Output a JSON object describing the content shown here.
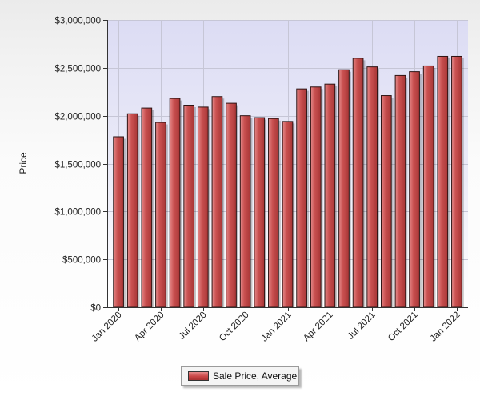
{
  "chart_data": {
    "type": "bar",
    "ylabel": "Price",
    "ylim": [
      0,
      3000000
    ],
    "y_ticks": [
      0,
      500000,
      1000000,
      1500000,
      2000000,
      2500000,
      3000000
    ],
    "y_tick_labels": [
      "$0",
      "$500,000",
      "$1,000,000",
      "$1,500,000",
      "$2,000,000",
      "$2,500,000",
      "$3,000,000"
    ],
    "categories": [
      "Jan 2020",
      "Feb 2020",
      "Mar 2020",
      "Apr 2020",
      "May 2020",
      "Jun 2020",
      "Jul 2020",
      "Aug 2020",
      "Sep 2020",
      "Oct 2020",
      "Nov 2020",
      "Dec 2020",
      "Jan 2021",
      "Feb 2021",
      "Mar 2021",
      "Apr 2021",
      "May 2021",
      "Jun 2021",
      "Jul 2021",
      "Aug 2021",
      "Sep 2021",
      "Oct 2021",
      "Nov 2021",
      "Dec 2021",
      "Jan 2022"
    ],
    "x_tick_labels": [
      "Jan 2020",
      "Apr 2020",
      "Jul 2020",
      "Oct 2020",
      "Jan 2021",
      "Apr 2021",
      "Jul 2021",
      "Oct 2021",
      "Jan 2022"
    ],
    "series": [
      {
        "name": "Sale Price, Average",
        "values": [
          1780000,
          2020000,
          2080000,
          1930000,
          2180000,
          2110000,
          2090000,
          2200000,
          2130000,
          2000000,
          1980000,
          1970000,
          1940000,
          2280000,
          2300000,
          2330000,
          2480000,
          2600000,
          2510000,
          2210000,
          2420000,
          2460000,
          2520000,
          2620000,
          2620000
        ]
      }
    ],
    "grid": true,
    "legend_position": "bottom-center",
    "colors": {
      "bar": "#c0504d",
      "bar_light": "#e58a8a",
      "bar_dark": "#8c2a2a",
      "plot_bg_top": "#dcdcf4",
      "plot_bg_bottom": "#ffffff"
    }
  }
}
